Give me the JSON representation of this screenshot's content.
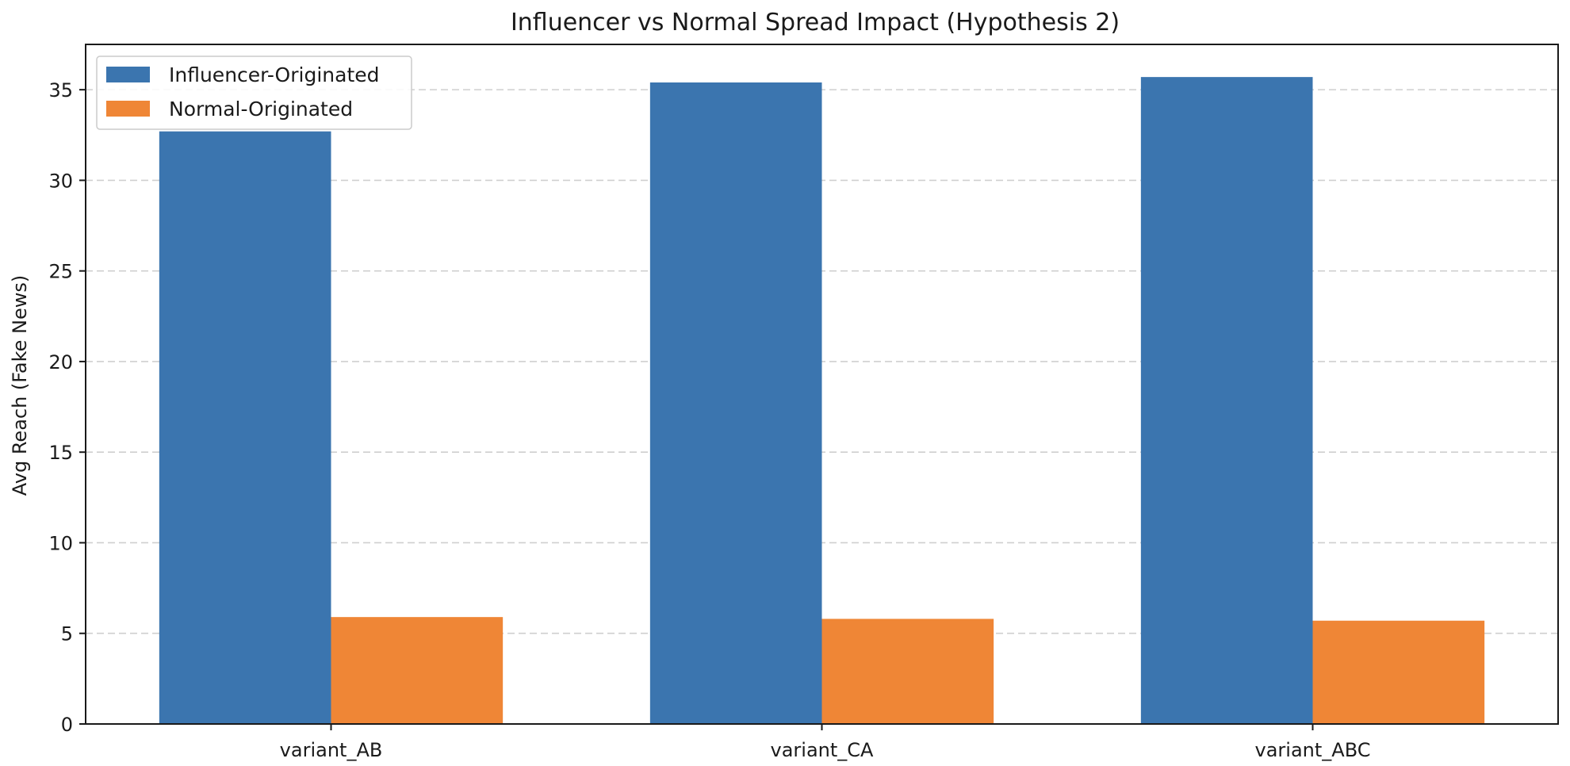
{
  "chart_data": {
    "type": "bar",
    "title": "Influencer vs Normal Spread Impact (Hypothesis 2)",
    "xlabel": "",
    "ylabel": "Avg Reach (Fake News)",
    "categories": [
      "variant_AB",
      "variant_CA",
      "variant_ABC"
    ],
    "series": [
      {
        "name": "Influencer-Originated",
        "color": "#3b75af",
        "values": [
          32.7,
          35.4,
          35.7
        ]
      },
      {
        "name": "Normal-Originated",
        "color": "#ef8636",
        "values": [
          5.9,
          5.8,
          5.7
        ]
      }
    ],
    "ylim": [
      0,
      37.5
    ],
    "yticks": [
      0,
      5,
      10,
      15,
      20,
      25,
      30,
      35
    ],
    "grid": "y-dashed",
    "legend_position": "top-left"
  }
}
